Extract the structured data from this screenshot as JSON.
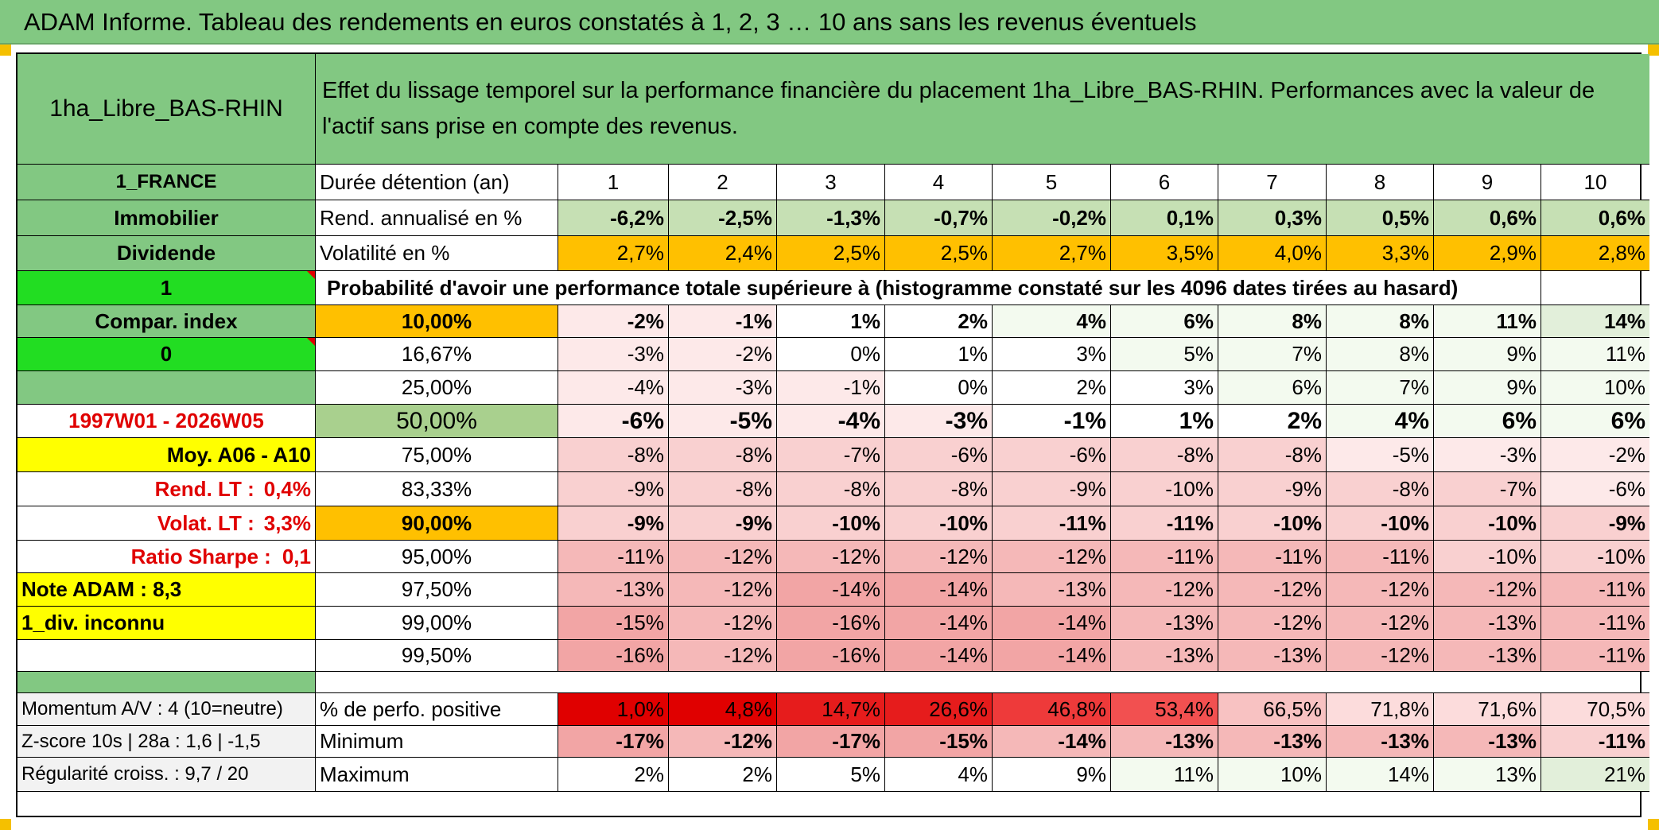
{
  "title": "ADAM Informe. Tableau des rendements en euros constatés à 1, 2, 3 … 10 ans sans les revenus éventuels",
  "asset_name": "1ha_Libre_BAS-RHIN",
  "description": "Effet du lissage temporel sur la performance financière du placement 1ha_Libre_BAS-RHIN. Performances avec la valeur de l'actif sans prise en compte des revenus.",
  "side": {
    "country": "1_FRANCE",
    "category": "Immobilier",
    "type": "Dividende",
    "flag1": "1",
    "compar_index": "Compar. index",
    "flag0": "0",
    "period": "1997W01 - 2026W05",
    "moy": "Moy. A06 - A10",
    "rend_lt_label": "Rend. LT :",
    "rend_lt_value": "0,4%",
    "volat_lt_label": "Volat. LT :",
    "volat_lt_value": "3,3%",
    "sharpe_label": "Ratio Sharpe :",
    "sharpe_value": "0,1",
    "note": "Note ADAM : 8,3",
    "div": "1_div. inconnu",
    "momentum": "Momentum A/V : 4 (10=neutre)",
    "zscore": "Z-score 10s | 28a : 1,6 | -1,5",
    "regularite": "Régularité croiss. : 9,7 / 20"
  },
  "labels": {
    "duree": "Durée détention (an)",
    "rend": "Rend. annualisé en %",
    "vol": "Volatilité en %",
    "proba": "Probabilité d'avoir une performance totale supérieure à (histogramme constaté sur les 4096 dates tirées au hasard)",
    "pos": "% de perfo. positive",
    "min": "Minimum",
    "max": "Maximum"
  },
  "years": [
    "1",
    "2",
    "3",
    "4",
    "5",
    "6",
    "7",
    "8",
    "9",
    "10"
  ],
  "rend": [
    "-6,2%",
    "-2,5%",
    "-1,3%",
    "-0,7%",
    "-0,2%",
    "0,1%",
    "0,3%",
    "0,5%",
    "0,6%",
    "0,6%"
  ],
  "vol": [
    "2,7%",
    "2,4%",
    "2,5%",
    "2,5%",
    "2,7%",
    "3,5%",
    "4,0%",
    "3,3%",
    "2,9%",
    "2,8%"
  ],
  "percentiles": [
    {
      "p": "10,00%",
      "v": [
        "-2%",
        "-1%",
        "1%",
        "2%",
        "4%",
        "6%",
        "8%",
        "8%",
        "11%",
        "14%"
      ]
    },
    {
      "p": "16,67%",
      "v": [
        "-3%",
        "-2%",
        "0%",
        "1%",
        "3%",
        "5%",
        "7%",
        "8%",
        "9%",
        "11%"
      ]
    },
    {
      "p": "25,00%",
      "v": [
        "-4%",
        "-3%",
        "-1%",
        "0%",
        "2%",
        "3%",
        "6%",
        "7%",
        "9%",
        "10%"
      ]
    },
    {
      "p": "50,00%",
      "v": [
        "-6%",
        "-5%",
        "-4%",
        "-3%",
        "-1%",
        "1%",
        "2%",
        "4%",
        "6%",
        "6%"
      ]
    },
    {
      "p": "75,00%",
      "v": [
        "-8%",
        "-8%",
        "-7%",
        "-6%",
        "-6%",
        "-8%",
        "-8%",
        "-5%",
        "-3%",
        "-2%"
      ]
    },
    {
      "p": "83,33%",
      "v": [
        "-9%",
        "-8%",
        "-8%",
        "-8%",
        "-9%",
        "-10%",
        "-9%",
        "-8%",
        "-7%",
        "-6%"
      ]
    },
    {
      "p": "90,00%",
      "v": [
        "-9%",
        "-9%",
        "-10%",
        "-10%",
        "-11%",
        "-11%",
        "-10%",
        "-10%",
        "-10%",
        "-9%"
      ]
    },
    {
      "p": "95,00%",
      "v": [
        "-11%",
        "-12%",
        "-12%",
        "-12%",
        "-12%",
        "-11%",
        "-11%",
        "-11%",
        "-10%",
        "-10%"
      ]
    },
    {
      "p": "97,50%",
      "v": [
        "-13%",
        "-12%",
        "-14%",
        "-14%",
        "-13%",
        "-12%",
        "-12%",
        "-12%",
        "-12%",
        "-11%"
      ]
    },
    {
      "p": "99,00%",
      "v": [
        "-15%",
        "-12%",
        "-16%",
        "-14%",
        "-14%",
        "-13%",
        "-12%",
        "-12%",
        "-13%",
        "-11%"
      ]
    },
    {
      "p": "99,50%",
      "v": [
        "-16%",
        "-12%",
        "-16%",
        "-14%",
        "-14%",
        "-13%",
        "-13%",
        "-12%",
        "-13%",
        "-11%"
      ]
    }
  ],
  "pos": [
    "1,0%",
    "4,8%",
    "14,7%",
    "26,6%",
    "46,8%",
    "53,4%",
    "66,5%",
    "71,8%",
    "71,6%",
    "70,5%"
  ],
  "min": [
    "-17%",
    "-12%",
    "-17%",
    "-15%",
    "-14%",
    "-13%",
    "-13%",
    "-13%",
    "-13%",
    "-11%"
  ],
  "max": [
    "2%",
    "2%",
    "5%",
    "4%",
    "9%",
    "11%",
    "10%",
    "14%",
    "13%",
    "21%"
  ]
}
